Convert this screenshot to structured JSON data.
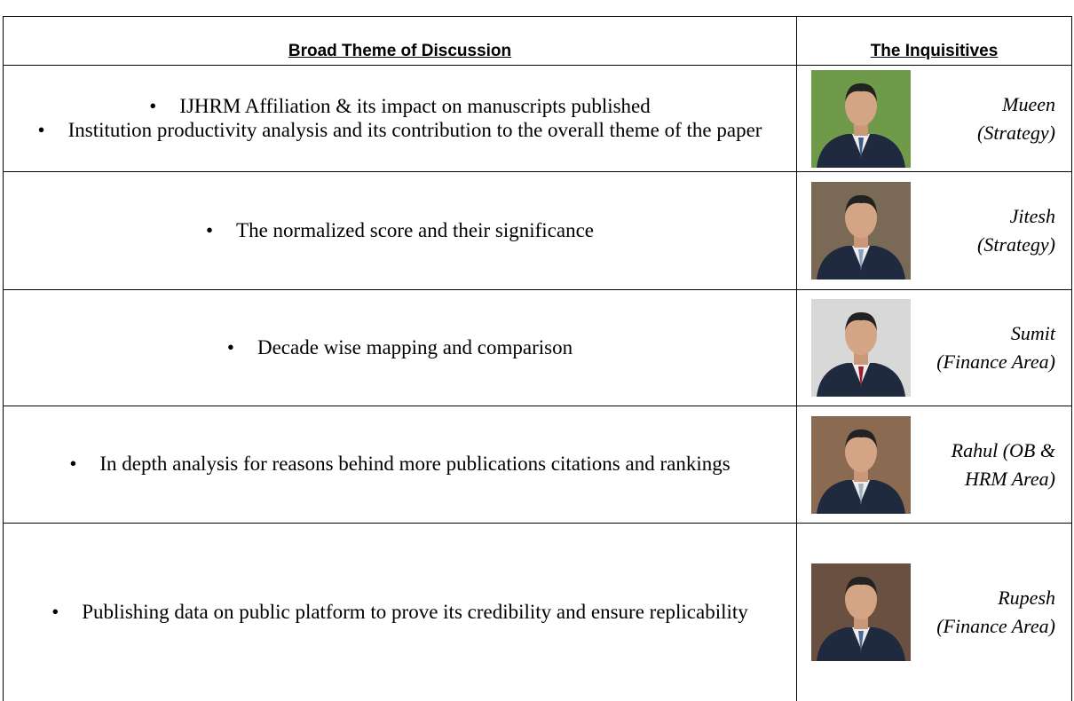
{
  "table": {
    "header": [
      "Broad Theme of Discussion",
      "The Inquisitives"
    ],
    "rows": [
      {
        "themes": [
          "IJHRM Affiliation & its impact on manuscripts published",
          "Institution productivity analysis and its contribution to the overall theme of the paper"
        ],
        "name": "Mueen (Strategy)"
      },
      {
        "themes": [
          "The normalized score and their significance"
        ],
        "name": "Jitesh (Strategy)"
      },
      {
        "themes": [
          "Decade wise mapping and comparison"
        ],
        "name": "Sumit (Finance Area)"
      },
      {
        "themes": [
          "In depth analysis for reasons behind more publications citations and rankings"
        ],
        "name": "Rahul (OB & HRM Area)"
      },
      {
        "themes": [
          "Publishing data on public platform to prove its credibility and ensure replicability"
        ],
        "name": "Rupesh (Finance Area)"
      }
    ]
  }
}
